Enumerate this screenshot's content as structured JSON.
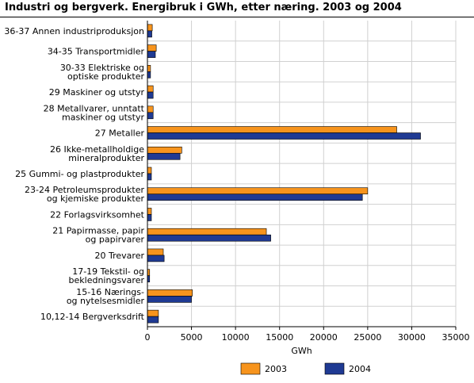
{
  "title": "Industri og bergverk. Energibruk i GWh, etter næring. 2003 og 2004",
  "chart_data": {
    "type": "bar",
    "orientation": "horizontal",
    "title": "Industri og bergverk. Energibruk i GWh, etter næring. 2003 og 2004",
    "xlabel": "GWh",
    "ylabel": "",
    "xlim": [
      0,
      35000
    ],
    "xticks": [
      0,
      5000,
      10000,
      15000,
      20000,
      25000,
      30000,
      35000
    ],
    "xtick_labels": [
      "0",
      "5000",
      "10000",
      "15000",
      "20000",
      "25000",
      "30000",
      "35000"
    ],
    "grid": true,
    "legend_position": "bottom-right",
    "categories": [
      [
        "36-37  Annen industriproduksjon"
      ],
      [
        "34-35  Transportmidler"
      ],
      [
        "30-33  Elektriske og",
        "optiske produkter"
      ],
      [
        "29  Maskiner og utstyr"
      ],
      [
        "28  Metallvarer, unntatt",
        "maskiner og utstyr"
      ],
      [
        "27  Metaller"
      ],
      [
        "26  Ikke-metallholdige",
        "mineralprodukter"
      ],
      [
        "25  Gummi- og plastprodukter"
      ],
      [
        "23-24  Petroleumsprodukter",
        "og kjemiske produkter"
      ],
      [
        "22  Forlagsvirksomhet"
      ],
      [
        "21  Papirmasse, papir",
        "og papirvarer"
      ],
      [
        "20  Trevarer"
      ],
      [
        "17-19  Tekstil- og",
        "bekledningsvarer"
      ],
      [
        "15-16  Nærings-",
        "og nytelsesmidler"
      ],
      [
        "10,12-14  Bergverksdrift"
      ]
    ],
    "series": [
      {
        "name": "2003",
        "color": "#f7941d",
        "values": [
          550,
          1000,
          350,
          650,
          650,
          28300,
          3900,
          450,
          25000,
          450,
          13500,
          1800,
          250,
          5100,
          1250
        ]
      },
      {
        "name": "2004",
        "color": "#1f3a93",
        "values": [
          500,
          900,
          350,
          650,
          650,
          31000,
          3700,
          450,
          24400,
          450,
          14000,
          1900,
          250,
          5000,
          1250
        ]
      }
    ]
  }
}
